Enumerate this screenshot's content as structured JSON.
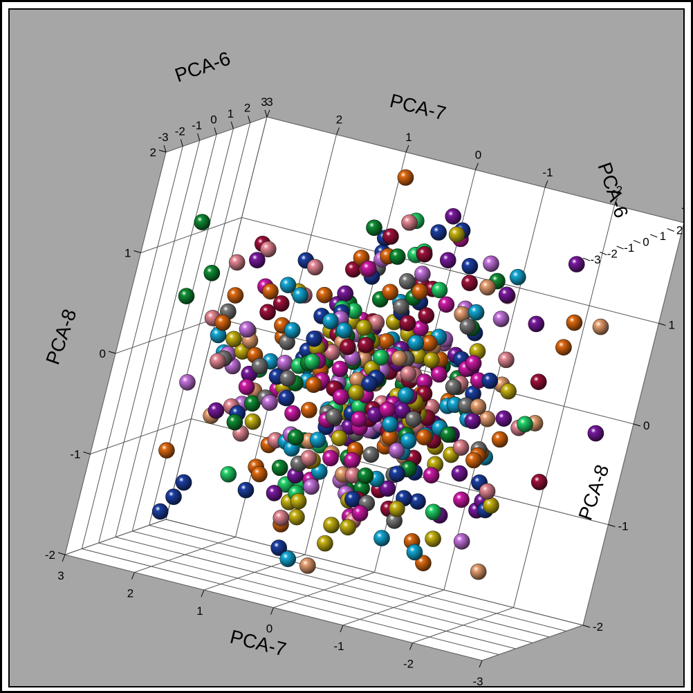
{
  "chart_data": {
    "type": "scatter",
    "subtype": "3d",
    "axes": {
      "x": {
        "label": "PCA-7",
        "range": [
          -3,
          3
        ],
        "ticks": [
          "3",
          "2",
          "1",
          "0",
          "-1",
          "-2",
          "-3"
        ]
      },
      "y": {
        "label": "PCA-6",
        "range": [
          -3,
          3
        ],
        "ticks": [
          "-3",
          "-2",
          "-1",
          "0",
          "1",
          "2",
          "3"
        ]
      },
      "z": {
        "label": "PCA-8",
        "range": [
          -2,
          2
        ],
        "ticks": [
          "-2",
          "-1",
          "0",
          "1",
          "2"
        ]
      }
    },
    "axis_labels": {
      "top_pca7": "PCA-7",
      "top_pca6": "PCA-6",
      "right_pca6": "PCA-6",
      "left_pca8": "PCA-8",
      "right_pca8": "PCA-8",
      "bottom_pca7": "PCA-7"
    },
    "grid": true,
    "colors": [
      "#1c3fa3",
      "#0f8f34",
      "#e06a10",
      "#d11aa8",
      "#c8b412",
      "#7a1aa0",
      "#a0123c",
      "#e88a96",
      "#7a7a7a",
      "#14a9d6",
      "#e8a070",
      "#c774e0",
      "#22d46a"
    ],
    "outlier_points": [
      {
        "x": 3.0,
        "y": 0.5,
        "z": 1.1,
        "c": 1
      },
      {
        "x": 2.8,
        "y": 1.0,
        "z": 0.6,
        "c": 1
      },
      {
        "x": 2.9,
        "y": 0.2,
        "z": 0.4,
        "c": 1
      },
      {
        "x": 2.6,
        "y": 1.2,
        "z": -1.6,
        "c": 0
      },
      {
        "x": 2.2,
        "y": -0.3,
        "z": -1.3,
        "c": 0
      },
      {
        "x": 1.5,
        "y": 0.5,
        "z": -1.3,
        "c": 0
      },
      {
        "x": -2.0,
        "y": 1.5,
        "z": 1.5,
        "c": 5
      },
      {
        "x": -2.6,
        "y": 1.2,
        "z": 1.0,
        "c": 10
      },
      {
        "x": -2.3,
        "y": -0.5,
        "z": 0.5,
        "c": 6
      },
      {
        "x": -2.6,
        "y": -1.5,
        "z": 0.2,
        "c": 10
      },
      {
        "x": -2.0,
        "y": -1.0,
        "z": -0.8,
        "c": 5
      },
      {
        "x": -1.8,
        "y": -0.3,
        "z": -0.6,
        "c": 0
      },
      {
        "x": -1.5,
        "y": -1.2,
        "z": -1.4,
        "c": 2
      },
      {
        "x": 0.2,
        "y": 1.5,
        "z": -1.5,
        "c": 4
      },
      {
        "x": 1.2,
        "y": 1.8,
        "z": -1.6,
        "c": 7
      },
      {
        "x": -0.5,
        "y": 1.8,
        "z": 1.2,
        "c": 0
      },
      {
        "x": 2.4,
        "y": 0.6,
        "z": 0.2,
        "c": 2
      },
      {
        "x": 2.4,
        "y": 0.9,
        "z": -0.2,
        "c": 7
      },
      {
        "x": -1.6,
        "y": -1.2,
        "z": 0.3,
        "c": 0
      },
      {
        "x": -1.3,
        "y": -1.6,
        "z": -0.8,
        "c": 0
      }
    ],
    "cluster": {
      "count": 480,
      "spread": 0.95,
      "seed": 7
    }
  }
}
